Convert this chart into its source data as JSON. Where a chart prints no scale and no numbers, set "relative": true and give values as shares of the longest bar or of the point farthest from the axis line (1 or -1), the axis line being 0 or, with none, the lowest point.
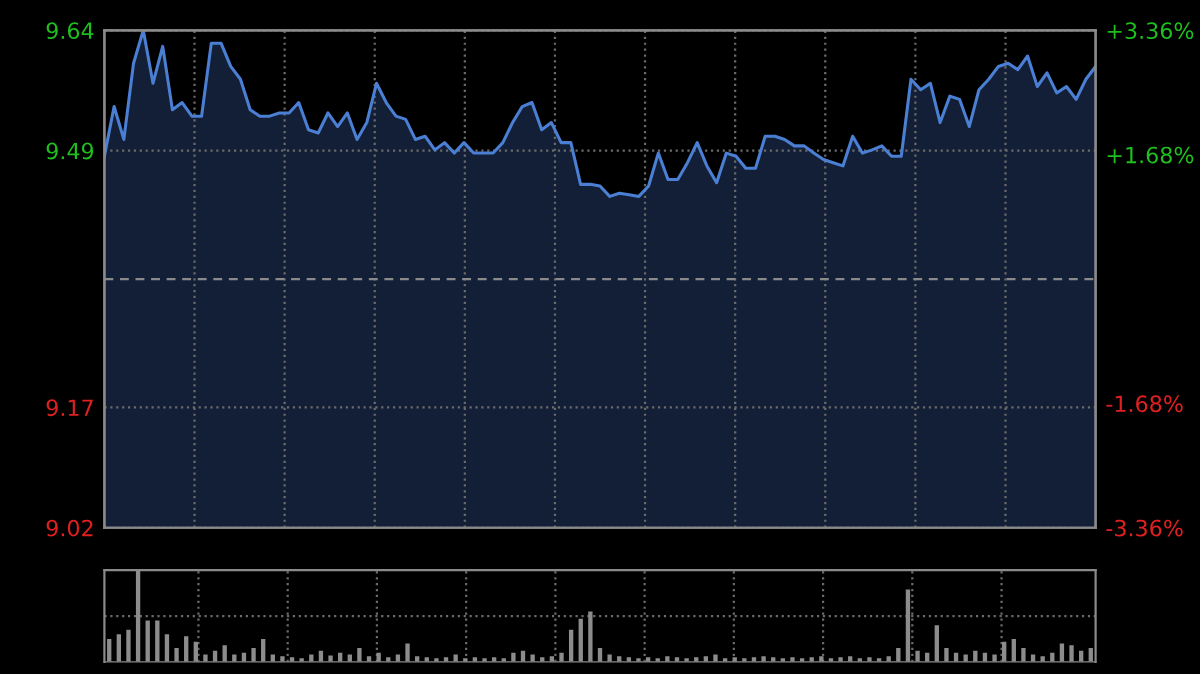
{
  "chart_data": [
    {
      "type": "area",
      "categories": [
        null,
        null,
        null,
        null,
        null,
        null,
        null,
        null,
        null,
        null,
        null,
        null,
        null,
        null,
        null,
        null,
        null,
        null,
        null,
        null,
        null,
        null,
        null,
        null,
        null,
        null,
        null,
        null,
        null,
        null,
        null,
        null,
        null,
        null,
        null,
        null,
        null,
        null,
        null,
        null,
        null,
        null,
        null,
        null,
        null,
        null,
        null,
        null,
        null,
        null,
        null,
        null,
        null,
        null,
        null,
        null,
        null,
        null,
        null,
        null,
        null,
        null,
        null,
        null,
        null,
        null,
        null,
        null,
        null,
        null,
        null,
        null,
        null,
        null,
        null,
        null,
        null,
        null,
        null,
        null,
        null,
        null,
        null,
        null,
        null,
        null,
        null,
        null,
        null,
        null,
        null,
        null,
        null,
        null,
        null,
        null,
        null,
        null,
        null,
        null,
        null,
        null,
        null
      ],
      "series": [
        {
          "color": "#4a7fd4",
          "values": [
            9.483,
            9.545,
            9.504,
            9.599,
            9.64,
            9.574,
            9.62,
            9.541,
            9.55,
            9.533,
            9.533,
            9.624,
            9.624,
            9.595,
            9.579,
            9.541,
            9.533,
            9.533,
            9.537,
            9.537,
            9.55,
            9.516,
            9.512,
            9.537,
            9.52,
            9.537,
            9.504,
            9.525,
            9.574,
            9.55,
            9.533,
            9.529,
            9.504,
            9.508,
            9.491,
            9.5,
            9.487,
            9.5,
            9.487,
            9.487,
            9.487,
            9.5,
            9.525,
            9.545,
            9.55,
            9.516,
            9.525,
            9.5,
            9.5,
            9.448,
            9.448,
            9.446,
            9.433,
            9.437,
            9.435,
            9.433,
            9.446,
            9.487,
            9.454,
            9.454,
            9.475,
            9.5,
            9.471,
            9.45,
            9.487,
            9.483,
            9.468,
            9.468,
            9.508,
            9.508,
            9.504,
            9.496,
            9.496,
            9.487,
            9.479,
            9.475,
            9.471,
            9.508,
            9.487,
            9.491,
            9.496,
            9.483,
            9.483,
            9.579,
            9.566,
            9.574,
            9.525,
            9.558,
            9.554,
            9.52,
            9.566,
            9.579,
            9.595,
            9.599,
            9.591,
            9.608,
            9.57,
            9.587,
            9.562,
            9.57,
            9.554,
            9.579,
            9.595
          ]
        }
      ],
      "ylim": [
        9.02,
        9.64
      ],
      "yticks": [
        9.02,
        9.17,
        9.49,
        9.64
      ],
      "y2lim": [
        -3.36,
        3.36
      ],
      "y2ticks": [
        {
          "value": -3.36,
          "label": "-3.36%"
        },
        {
          "value": -1.68,
          "label": "-1.68%"
        },
        {
          "value": 1.68,
          "label": "+1.68%"
        },
        {
          "value": 3.36,
          "label": "+3.36%"
        }
      ],
      "ref_lines": [
        {
          "axis": "y",
          "value": 9.33,
          "color": "#8a8a8a",
          "line_style": "dashed"
        }
      ],
      "grid": true,
      "tick_labels": "y"
    },
    {
      "type": "bar",
      "relative": true,
      "color": "#8c8c8c",
      "grid": true,
      "tick_labels": false,
      "categories": [
        null,
        null,
        null,
        null,
        null,
        null,
        null,
        null,
        null,
        null,
        null,
        null,
        null,
        null,
        null,
        null,
        null,
        null,
        null,
        null,
        null,
        null,
        null,
        null,
        null,
        null,
        null,
        null,
        null,
        null,
        null,
        null,
        null,
        null,
        null,
        null,
        null,
        null,
        null,
        null,
        null,
        null,
        null,
        null,
        null,
        null,
        null,
        null,
        null,
        null,
        null,
        null,
        null,
        null,
        null,
        null,
        null,
        null,
        null,
        null,
        null,
        null,
        null,
        null,
        null,
        null,
        null,
        null,
        null,
        null,
        null,
        null,
        null,
        null,
        null,
        null,
        null,
        null,
        null,
        null,
        null,
        null,
        null,
        null,
        null,
        null,
        null,
        null,
        null,
        null,
        null,
        null,
        null,
        null,
        null,
        null,
        null,
        null,
        null,
        null,
        null,
        null,
        null
      ],
      "values": [
        0.25,
        0.3,
        0.35,
        1.0,
        0.45,
        0.45,
        0.3,
        0.15,
        0.28,
        0.22,
        0.08,
        0.12,
        0.18,
        0.08,
        0.1,
        0.15,
        0.25,
        0.08,
        0.06,
        0.05,
        0.04,
        0.08,
        0.12,
        0.07,
        0.1,
        0.08,
        0.15,
        0.06,
        0.1,
        0.05,
        0.08,
        0.2,
        0.06,
        0.05,
        0.04,
        0.05,
        0.08,
        0.04,
        0.05,
        0.04,
        0.05,
        0.04,
        0.1,
        0.12,
        0.08,
        0.05,
        0.06,
        0.1,
        0.35,
        0.47,
        0.55,
        0.15,
        0.08,
        0.06,
        0.05,
        0.04,
        0.05,
        0.04,
        0.06,
        0.05,
        0.04,
        0.05,
        0.06,
        0.08,
        0.04,
        0.05,
        0.04,
        0.05,
        0.06,
        0.05,
        0.04,
        0.05,
        0.04,
        0.05,
        0.06,
        0.04,
        0.05,
        0.06,
        0.04,
        0.05,
        0.04,
        0.06,
        0.15,
        0.79,
        0.12,
        0.1,
        0.4,
        0.15,
        0.1,
        0.08,
        0.12,
        0.1,
        0.08,
        0.22,
        0.25,
        0.15,
        0.08,
        0.06,
        0.1,
        0.2,
        0.18,
        0.12,
        0.15
      ]
    }
  ]
}
